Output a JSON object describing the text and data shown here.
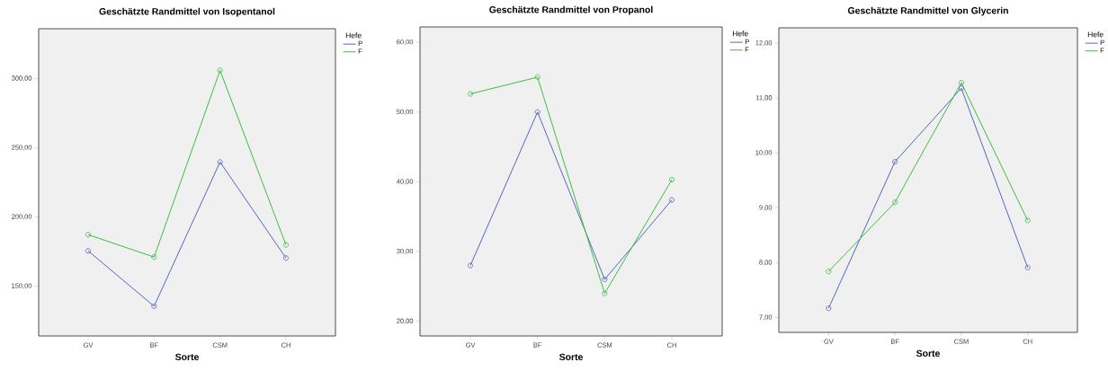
{
  "chart_data": [
    {
      "type": "line",
      "title": "Geschätzte Randmittel von Isopentanol",
      "xlabel": "Sorte",
      "legend_title": "Hefe",
      "legend": "right",
      "marker": "circle",
      "categories": [
        "GV",
        "BF",
        "CSM",
        "CH"
      ],
      "ylim": [
        114,
        336
      ],
      "yticks": [
        {
          "value": 150,
          "label": "150,00"
        },
        {
          "value": 200,
          "label": "200,00"
        },
        {
          "value": 250,
          "label": "250,00"
        },
        {
          "value": 300,
          "label": "300,00"
        }
      ],
      "series": [
        {
          "name": "P",
          "color": "#5563c1",
          "values": [
            175.5,
            135.5,
            239.7,
            170.3
          ]
        },
        {
          "name": "F",
          "color": "#3dbd3d",
          "values": [
            187.2,
            171.0,
            305.9,
            179.8
          ]
        }
      ]
    },
    {
      "type": "line",
      "title": "Geschätzte Randmittel von Propanol",
      "xlabel": "Sorte",
      "legend_title": "Hefe",
      "legend": "right",
      "marker": "circle",
      "categories": [
        "GV",
        "BF",
        "CSM",
        "CH"
      ],
      "ylim": [
        17.9,
        62.2
      ],
      "yticks": [
        {
          "value": 20,
          "label": "20,00"
        },
        {
          "value": 30,
          "label": "30,00"
        },
        {
          "value": 40,
          "label": "40,00"
        },
        {
          "value": 50,
          "label": "50,00"
        },
        {
          "value": 60,
          "label": "60,00"
        }
      ],
      "series": [
        {
          "name": "P",
          "color": "#5563c1",
          "values": [
            28.0,
            50.0,
            26.0,
            37.4
          ]
        },
        {
          "name": "F",
          "color": "#3dbd3d",
          "values": [
            52.6,
            55.0,
            24.0,
            40.3
          ]
        }
      ]
    },
    {
      "type": "line",
      "title": "Geschätzte Randmittel von Glycerin",
      "xlabel": "Sorte",
      "legend_title": "Hefe",
      "legend": "right",
      "marker": "circle",
      "categories": [
        "GV",
        "BF",
        "CSM",
        "CH"
      ],
      "ylim": [
        6.73,
        12.28
      ],
      "yticks": [
        {
          "value": 7,
          "label": "7,00"
        },
        {
          "value": 8,
          "label": "8,00"
        },
        {
          "value": 9,
          "label": "9,00"
        },
        {
          "value": 10,
          "label": "10,00"
        },
        {
          "value": 11,
          "label": "11,00"
        },
        {
          "value": 12,
          "label": "12,00"
        }
      ],
      "series": [
        {
          "name": "P",
          "color": "#5563c1",
          "values": [
            7.17,
            9.84,
            11.18,
            7.91
          ]
        },
        {
          "name": "F",
          "color": "#3dbd3d",
          "values": [
            7.84,
            9.1,
            11.28,
            8.77
          ]
        }
      ]
    }
  ]
}
